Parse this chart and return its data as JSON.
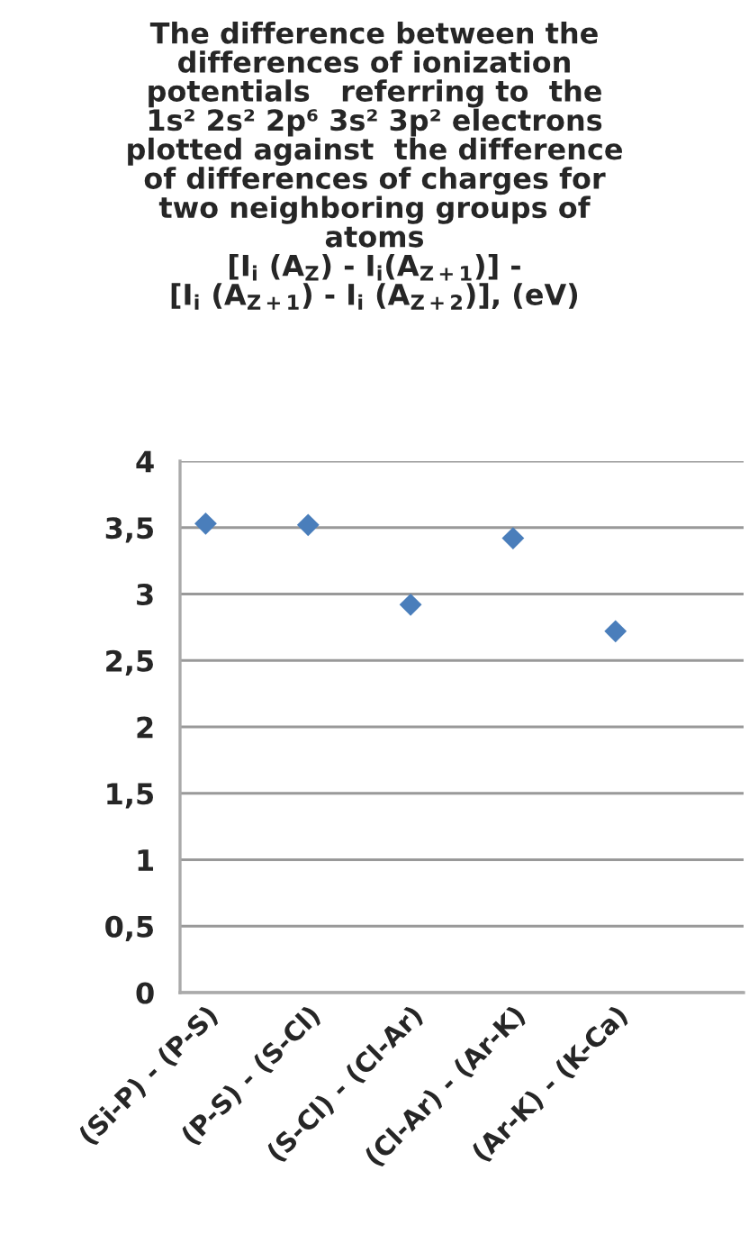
{
  "chart_data": {
    "type": "scatter",
    "title": "The difference between the\ndifferences of ionization\npotentials   referring to  the\n1s² 2s² 2p⁶ 3s² 3p² electrons\nplotted against  the difference\nof differences of charges for\ntwo neighboring groups of\natoms\n[I$_{i}$ (A$_{Z}$) - I$_{i}$(A$_{Z+1}$)] -\n[I$_{i}$ (A$_{Z+1}$) - I$_{i}$ (A$_{Z+2}$)], (eV)",
    "categories": [
      "(Si-P) - (P-S)",
      null,
      "(P-S) - (S-Cl)",
      null,
      "(S-Cl) - (Cl-Ar)",
      null,
      "(Cl-Ar) - (Ar-K)",
      null,
      "(Ar-K) - (K-Ca)",
      null,
      null
    ],
    "series": [
      {
        "color": "#4a7ebb",
        "values": [
          3.53,
          null,
          3.52,
          null,
          2.92,
          null,
          3.42,
          null,
          2.72,
          null,
          null
        ]
      }
    ],
    "ylim": [
      0,
      4
    ],
    "yticks": [
      0,
      {
        "value": 0.5,
        "label": "0,5"
      },
      1,
      {
        "value": 1.5,
        "label": "1,5"
      },
      2,
      {
        "value": 2.5,
        "label": "2,5"
      },
      3,
      {
        "value": 3.5,
        "label": "3,5"
      },
      4
    ],
    "grid": "y",
    "marker": "diamond"
  }
}
